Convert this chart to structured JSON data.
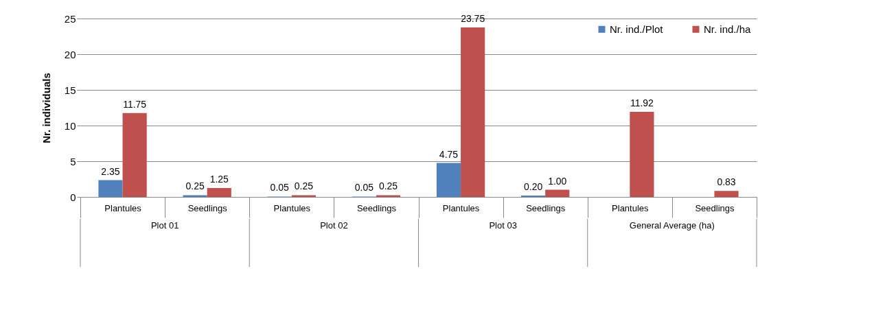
{
  "chart_data": {
    "type": "bar",
    "ylabel": "Nr. individuals",
    "categories": [
      "Plantules",
      "Seedlings",
      "Plantules",
      "Seedlings",
      "Plantules",
      "Seedlings",
      "Plantules",
      "Seedlings"
    ],
    "series": [
      {
        "name": "Nr. ind./Plot",
        "color": "#4f81bd",
        "values": [
          2.35,
          0.25,
          0.05,
          0.05,
          4.75,
          0.2,
          null,
          null
        ],
        "value_labels": [
          "2.35",
          "0.25",
          "0.05",
          "0.05",
          "4.75",
          "0.20",
          null,
          null
        ]
      },
      {
        "name": "Nr. ind./ha",
        "color": "#c0504d",
        "values": [
          11.75,
          1.25,
          0.25,
          0.25,
          23.75,
          1.0,
          11.92,
          0.83
        ],
        "value_labels": [
          "11.75",
          "1.25",
          "0.25",
          "0.25",
          "23.75",
          "1.00",
          "11.92",
          "0.83"
        ]
      }
    ],
    "annotations": [
      "Plot 01",
      "Plot 02",
      "Plot 03",
      "General Average (ha)"
    ],
    "ylim": [
      0,
      25
    ],
    "yticks": [
      0,
      5,
      10,
      15,
      20,
      25
    ],
    "grid": "y",
    "legend": "top right"
  }
}
